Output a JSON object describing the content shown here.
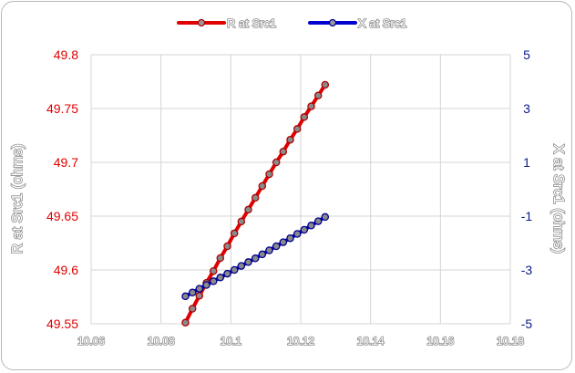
{
  "chart_data": {
    "type": "line",
    "x": [
      10.087,
      10.089,
      10.091,
      10.093,
      10.095,
      10.097,
      10.099,
      10.101,
      10.103,
      10.105,
      10.107,
      10.109,
      10.111,
      10.113,
      10.115,
      10.117,
      10.119,
      10.121,
      10.123,
      10.125,
      10.127
    ],
    "series": [
      {
        "name": "R at Src1",
        "axis": "left",
        "color": "#e00000",
        "values": [
          49.551,
          49.564,
          49.576,
          49.588,
          49.599,
          49.611,
          49.622,
          49.634,
          49.645,
          49.656,
          49.667,
          49.678,
          49.689,
          49.7,
          49.71,
          49.721,
          49.731,
          49.742,
          49.752,
          49.762,
          49.772
        ]
      },
      {
        "name": "X at Src1",
        "axis": "right",
        "color": "#0000d0",
        "values": [
          -3.98,
          -3.84,
          -3.7,
          -3.56,
          -3.42,
          -3.28,
          -3.14,
          -3.0,
          -2.85,
          -2.71,
          -2.57,
          -2.42,
          -2.27,
          -2.12,
          -1.97,
          -1.82,
          -1.66,
          -1.51,
          -1.35,
          -1.19,
          -1.03
        ]
      }
    ],
    "xlim": [
      10.06,
      10.18
    ],
    "xticks": [
      "10.06",
      "10.08",
      "10.1",
      "10.12",
      "10.14",
      "10.16",
      "10.18"
    ],
    "ylim_left": [
      49.55,
      49.8
    ],
    "yticks_left": [
      "49.8",
      "49.75",
      "49.7",
      "49.65",
      "49.6",
      "49.55"
    ],
    "ylim_right": [
      -5,
      5
    ],
    "yticks_right": [
      "5",
      "3",
      "1",
      "-1",
      "-3",
      "-5"
    ],
    "ylabel_left": "R at Src1 (ohms)",
    "ylabel_right": "X at Src1 (ohms)",
    "xlabel": "",
    "title": "",
    "grid": true,
    "legend_position": "top-center",
    "left_axis_color": "#e00000",
    "right_axis_color": "#0a1a8a"
  }
}
